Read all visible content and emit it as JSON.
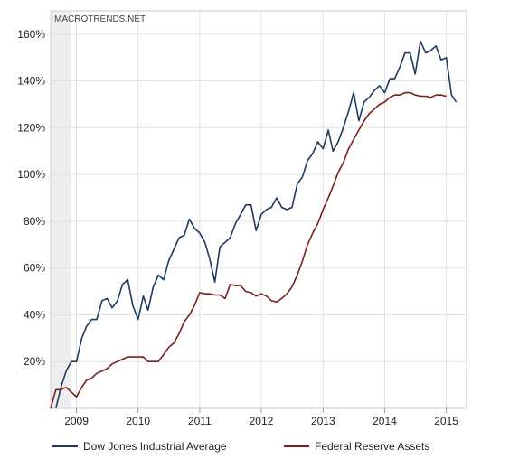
{
  "source_label": "MACROTRENDS.NET",
  "colors": {
    "dow": "#1f3a5f",
    "fed": "#7a1e1e",
    "grid": "#e3e3e3",
    "border": "#cccccc",
    "shade": "#eeeeee"
  },
  "chart_data": {
    "type": "line",
    "title": "",
    "xlabel": "",
    "ylabel": "",
    "x_ticks": [
      "2009",
      "2010",
      "2011",
      "2012",
      "2013",
      "2014",
      "2015"
    ],
    "y_ticks": [
      "20%",
      "40%",
      "60%",
      "80%",
      "100%",
      "120%",
      "140%",
      "160%"
    ],
    "xlim": [
      "2008-08",
      "2015-05"
    ],
    "ylim": [
      0,
      170
    ],
    "grid": true,
    "legend_position": "bottom",
    "shaded_period": [
      "2008-08",
      "2008-12"
    ],
    "series": [
      {
        "name": "Dow Jones Industrial Average",
        "color": "#1f3a5f",
        "points": [
          [
            "2008-09",
            0
          ],
          [
            "2008-10",
            9
          ],
          [
            "2008-11",
            16
          ],
          [
            "2008-12",
            20
          ],
          [
            "2009-01",
            20
          ],
          [
            "2009-02",
            30
          ],
          [
            "2009-03",
            35
          ],
          [
            "2009-04",
            38
          ],
          [
            "2009-05",
            38
          ],
          [
            "2009-06",
            46
          ],
          [
            "2009-07",
            47
          ],
          [
            "2009-08",
            43
          ],
          [
            "2009-09",
            46
          ],
          [
            "2009-10",
            53
          ],
          [
            "2009-11",
            55
          ],
          [
            "2009-12",
            44
          ],
          [
            "2010-01",
            38
          ],
          [
            "2010-02",
            48
          ],
          [
            "2010-03",
            42
          ],
          [
            "2010-04",
            52
          ],
          [
            "2010-05",
            57
          ],
          [
            "2010-06",
            55
          ],
          [
            "2010-07",
            63
          ],
          [
            "2010-08",
            68
          ],
          [
            "2010-09",
            73
          ],
          [
            "2010-10",
            74
          ],
          [
            "2010-11",
            81
          ],
          [
            "2010-12",
            77
          ],
          [
            "2011-01",
            75
          ],
          [
            "2011-02",
            71
          ],
          [
            "2011-03",
            64
          ],
          [
            "2011-04",
            54
          ],
          [
            "2011-05",
            69
          ],
          [
            "2011-06",
            71
          ],
          [
            "2011-07",
            73
          ],
          [
            "2011-08",
            79
          ],
          [
            "2011-09",
            83
          ],
          [
            "2011-10",
            87
          ],
          [
            "2011-11",
            87
          ],
          [
            "2011-12",
            76
          ],
          [
            "2012-01",
            83
          ],
          [
            "2012-02",
            85
          ],
          [
            "2012-03",
            86
          ],
          [
            "2012-04",
            90
          ],
          [
            "2012-05",
            86
          ],
          [
            "2012-06",
            85
          ],
          [
            "2012-07",
            86
          ],
          [
            "2012-08",
            96
          ],
          [
            "2012-09",
            99
          ],
          [
            "2012-10",
            106
          ],
          [
            "2012-11",
            109
          ],
          [
            "2012-12",
            114
          ],
          [
            "2013-01",
            111
          ],
          [
            "2013-02",
            119
          ],
          [
            "2013-03",
            110
          ],
          [
            "2013-04",
            114
          ],
          [
            "2013-05",
            120
          ],
          [
            "2013-06",
            127
          ],
          [
            "2013-07",
            135
          ],
          [
            "2013-08",
            123
          ],
          [
            "2013-09",
            131
          ],
          [
            "2013-10",
            133
          ],
          [
            "2013-11",
            136
          ],
          [
            "2013-12",
            138
          ],
          [
            "2014-01",
            135
          ],
          [
            "2014-02",
            141
          ],
          [
            "2014-03",
            141
          ],
          [
            "2014-04",
            146
          ],
          [
            "2014-05",
            152
          ],
          [
            "2014-06",
            152
          ],
          [
            "2014-07",
            143
          ],
          [
            "2014-08",
            157
          ],
          [
            "2014-09",
            152
          ],
          [
            "2014-10",
            153
          ],
          [
            "2014-11",
            155
          ],
          [
            "2014-12",
            149
          ],
          [
            "2015-01",
            150
          ],
          [
            "2015-02",
            134
          ],
          [
            "2015-03",
            131
          ]
        ]
      },
      {
        "name": "Federal Reserve Assets",
        "color": "#7a1e1e",
        "points": [
          [
            "2008-08",
            0
          ],
          [
            "2008-09",
            8
          ],
          [
            "2008-10",
            8
          ],
          [
            "2008-11",
            9
          ],
          [
            "2008-12",
            7
          ],
          [
            "2009-01",
            5
          ],
          [
            "2009-02",
            9
          ],
          [
            "2009-03",
            12
          ],
          [
            "2009-04",
            13
          ],
          [
            "2009-05",
            15
          ],
          [
            "2009-06",
            16
          ],
          [
            "2009-07",
            17
          ],
          [
            "2009-08",
            19
          ],
          [
            "2009-09",
            20
          ],
          [
            "2009-10",
            21
          ],
          [
            "2009-11",
            22
          ],
          [
            "2009-12",
            22
          ],
          [
            "2010-01",
            22
          ],
          [
            "2010-02",
            22
          ],
          [
            "2010-03",
            20
          ],
          [
            "2010-04",
            20
          ],
          [
            "2010-05",
            20
          ],
          [
            "2010-06",
            23
          ],
          [
            "2010-07",
            26
          ],
          [
            "2010-08",
            28
          ],
          [
            "2010-09",
            32
          ],
          [
            "2010-10",
            37
          ],
          [
            "2010-11",
            40
          ],
          [
            "2010-12",
            44
          ],
          [
            "2011-01",
            49.5
          ],
          [
            "2011-02",
            49
          ],
          [
            "2011-03",
            49
          ],
          [
            "2011-04",
            48.5
          ],
          [
            "2011-05",
            48.5
          ],
          [
            "2011-06",
            47
          ],
          [
            "2011-07",
            53
          ],
          [
            "2011-08",
            52.5
          ],
          [
            "2011-09",
            52.5
          ],
          [
            "2011-10",
            50
          ],
          [
            "2011-11",
            49.5
          ],
          [
            "2011-12",
            48
          ],
          [
            "2012-01",
            49
          ],
          [
            "2012-02",
            48
          ],
          [
            "2012-03",
            46
          ],
          [
            "2012-04",
            45.5
          ],
          [
            "2012-05",
            47
          ],
          [
            "2012-06",
            49
          ],
          [
            "2012-07",
            52
          ],
          [
            "2012-08",
            57
          ],
          [
            "2012-09",
            63
          ],
          [
            "2012-10",
            70
          ],
          [
            "2012-11",
            75
          ],
          [
            "2012-12",
            79
          ],
          [
            "2013-01",
            85
          ],
          [
            "2013-02",
            90
          ],
          [
            "2013-03",
            95
          ],
          [
            "2013-04",
            101
          ],
          [
            "2013-05",
            105
          ],
          [
            "2013-06",
            111
          ],
          [
            "2013-07",
            115
          ],
          [
            "2013-08",
            119
          ],
          [
            "2013-09",
            123
          ],
          [
            "2013-10",
            126
          ],
          [
            "2013-11",
            128
          ],
          [
            "2013-12",
            130
          ],
          [
            "2014-01",
            131
          ],
          [
            "2014-02",
            133
          ],
          [
            "2014-03",
            134
          ],
          [
            "2014-04",
            134
          ],
          [
            "2014-05",
            135
          ],
          [
            "2014-06",
            135
          ],
          [
            "2014-07",
            134
          ],
          [
            "2014-08",
            133.5
          ],
          [
            "2014-09",
            133.5
          ],
          [
            "2014-10",
            133
          ],
          [
            "2014-11",
            134
          ],
          [
            "2014-12",
            134
          ],
          [
            "2015-01",
            133.5
          ]
        ]
      }
    ]
  }
}
